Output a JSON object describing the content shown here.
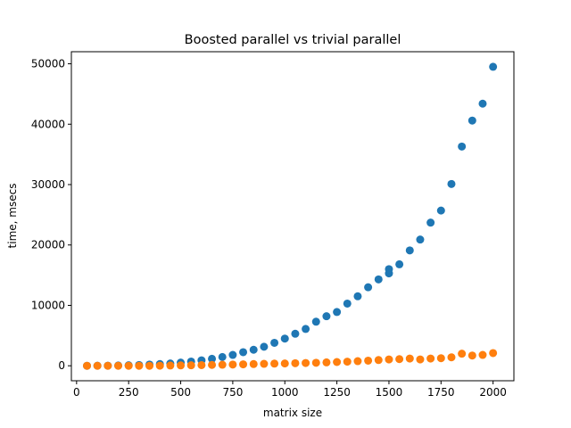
{
  "chart_data": {
    "type": "scatter",
    "title": "Boosted parallel vs trivial parallel",
    "xlabel": "matrix size",
    "ylabel": "time, msecs",
    "xlim": [
      -25,
      2100
    ],
    "ylim": [
      -2480,
      52000
    ],
    "xticks": [
      0,
      250,
      500,
      750,
      1000,
      1250,
      1500,
      1750,
      2000
    ],
    "yticks": [
      0,
      10000,
      20000,
      30000,
      40000,
      50000
    ],
    "grid": false,
    "series": [
      {
        "color": "#1f77b4",
        "x": [
          50,
          100,
          150,
          200,
          250,
          300,
          350,
          400,
          450,
          500,
          550,
          600,
          650,
          700,
          750,
          800,
          850,
          900,
          950,
          1000,
          1050,
          1100,
          1150,
          1200,
          1250,
          1300,
          1350,
          1400,
          1450,
          1500,
          1500,
          1550,
          1600,
          1650,
          1700,
          1750,
          1800,
          1850,
          1900,
          1950,
          2000
        ],
        "y": [
          0,
          10,
          20,
          40,
          80,
          130,
          200,
          280,
          380,
          520,
          700,
          900,
          1150,
          1450,
          1800,
          2250,
          2650,
          3150,
          3800,
          4500,
          5300,
          6100,
          7300,
          8200,
          8900,
          10300,
          11500,
          13000,
          14300,
          15300,
          16000,
          16800,
          19100,
          20900,
          23700,
          25700,
          30100,
          36300,
          40600,
          43400,
          49500
        ]
      },
      {
        "color": "#ff7f0e",
        "x": [
          50,
          100,
          150,
          200,
          250,
          300,
          350,
          400,
          450,
          500,
          550,
          600,
          650,
          700,
          750,
          800,
          850,
          900,
          950,
          1000,
          1050,
          1100,
          1150,
          1200,
          1250,
          1300,
          1350,
          1400,
          1450,
          1500,
          1550,
          1600,
          1650,
          1700,
          1750,
          1800,
          1850,
          1900,
          1950,
          2000
        ],
        "y": [
          0,
          0,
          0,
          0,
          0,
          0,
          0,
          20,
          40,
          60,
          80,
          110,
          140,
          170,
          200,
          240,
          280,
          320,
          360,
          380,
          420,
          460,
          500,
          560,
          620,
          680,
          760,
          850,
          950,
          1050,
          1100,
          1200,
          1050,
          1200,
          1250,
          1400,
          2000,
          1700,
          1800,
          2100
        ]
      }
    ]
  }
}
